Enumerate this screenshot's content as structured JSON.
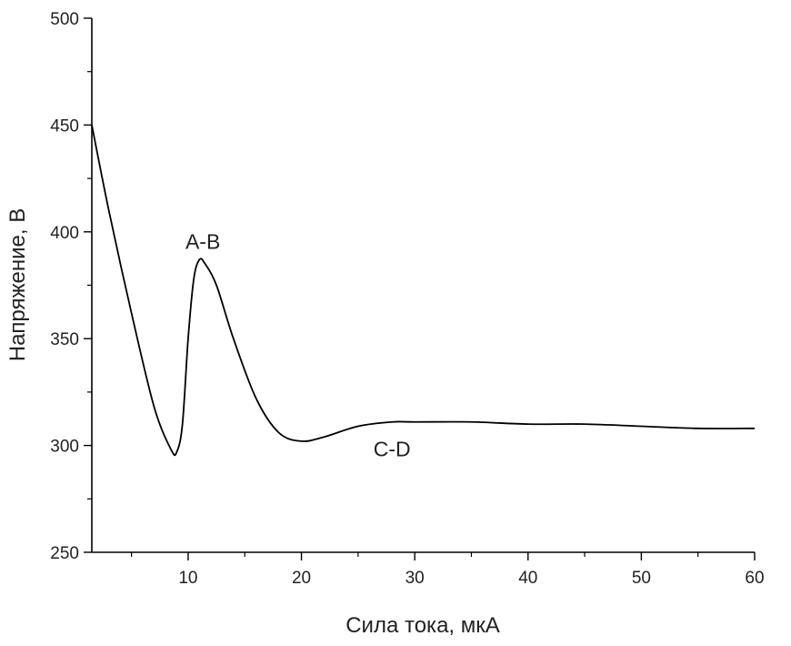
{
  "chart_data": {
    "type": "line",
    "xlabel": "Сила тока, мкА",
    "ylabel": "Напряжение, В",
    "xlim": [
      1.5,
      60
    ],
    "ylim": [
      250,
      500
    ],
    "x_ticks": [
      10,
      20,
      30,
      40,
      50,
      60
    ],
    "x_tick_labels": [
      "10",
      "20",
      "30",
      "40",
      "50",
      "60"
    ],
    "y_ticks": [
      250,
      300,
      350,
      400,
      450,
      500
    ],
    "y_tick_labels": [
      "250",
      "300",
      "350",
      "400",
      "450",
      "500"
    ],
    "grid": false,
    "series": [
      {
        "x": [
          1.5,
          3,
          5,
          7,
          8.5,
          9,
          9.5,
          10,
          10.5,
          11,
          11.5,
          12.5,
          14,
          16,
          18,
          20,
          22,
          25,
          28,
          30,
          35,
          40,
          45,
          50,
          55,
          60
        ],
        "y": [
          450,
          410,
          362,
          318,
          298,
          297,
          310,
          350,
          378,
          387,
          385,
          375,
          350,
          322,
          306,
          302,
          304,
          309,
          311,
          311,
          311,
          310,
          310,
          309,
          308,
          308
        ]
      }
    ],
    "annotations": [
      {
        "text": "A-B",
        "x": 11.3,
        "y": 392
      },
      {
        "text": "C-D",
        "x": 28,
        "y": 295
      }
    ]
  }
}
